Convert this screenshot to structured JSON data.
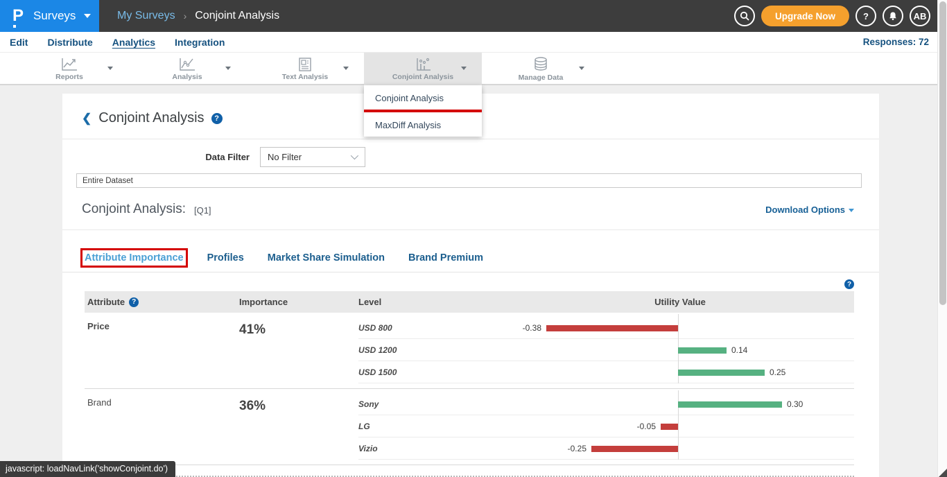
{
  "header": {
    "logo_glyph": "P",
    "product": "Surveys",
    "breadcrumb": {
      "parent": "My Surveys",
      "separator": "›",
      "current": "Conjoint Analysis"
    },
    "upgrade_label": "Upgrade Now",
    "avatar_initials": "AB"
  },
  "subnav": {
    "items": [
      {
        "label": "Edit",
        "active": false
      },
      {
        "label": "Distribute",
        "active": false
      },
      {
        "label": "Analytics",
        "active": true
      },
      {
        "label": "Integration",
        "active": false
      }
    ],
    "responses_label": "Responses: 72"
  },
  "toolbar": {
    "items": [
      {
        "label": "Reports",
        "icon": "reports-chart-icon",
        "active": false
      },
      {
        "label": "Analysis",
        "icon": "analysis-chart-icon",
        "active": false
      },
      {
        "label": "Text Analysis",
        "icon": "text-analysis-icon",
        "active": false
      },
      {
        "label": "Conjoint Analysis",
        "icon": "conjoint-chart-icon",
        "active": true
      },
      {
        "label": "Manage Data",
        "icon": "database-icon",
        "active": false
      }
    ],
    "dropdown": {
      "items": [
        {
          "label": "Conjoint Analysis",
          "annotated": true
        },
        {
          "label": "MaxDiff Analysis",
          "annotated": false
        }
      ]
    }
  },
  "page": {
    "title": "Conjoint Analysis",
    "help_glyph": "?",
    "data_filter_label": "Data Filter",
    "data_filter_value": "No Filter",
    "dataset_value": "Entire Dataset",
    "analysis_label": "Conjoint Analysis:",
    "question_ref": "[Q1]",
    "download_label": "Download Options",
    "tabs": [
      {
        "label": "Attribute Importance",
        "active": true,
        "annotated": true
      },
      {
        "label": "Profiles",
        "active": false,
        "annotated": false
      },
      {
        "label": "Market Share Simulation",
        "active": false,
        "annotated": false
      },
      {
        "label": "Brand Premium",
        "active": false,
        "annotated": false
      }
    ]
  },
  "table": {
    "headers": {
      "attribute": "Attribute",
      "importance": "Importance",
      "level": "Level",
      "utility": "Utility Value"
    },
    "colors": {
      "positive_bar": "#56b181",
      "negative_bar": "#c43e3c"
    },
    "rows": [
      {
        "attribute": "Price",
        "attribute_bold": true,
        "importance": "41%",
        "levels": [
          {
            "name": "USD 800",
            "value": -0.38
          },
          {
            "name": "USD 1200",
            "value": 0.14
          },
          {
            "name": "USD 1500",
            "value": 0.25
          }
        ]
      },
      {
        "attribute": "Brand",
        "attribute_bold": false,
        "importance": "36%",
        "levels": [
          {
            "name": "Sony",
            "value": 0.3
          },
          {
            "name": "LG",
            "value": -0.05
          },
          {
            "name": "Vizio",
            "value": -0.25
          }
        ]
      }
    ]
  },
  "status_bar": {
    "text": "javascript: loadNavLink('showConjoint.do')"
  }
}
